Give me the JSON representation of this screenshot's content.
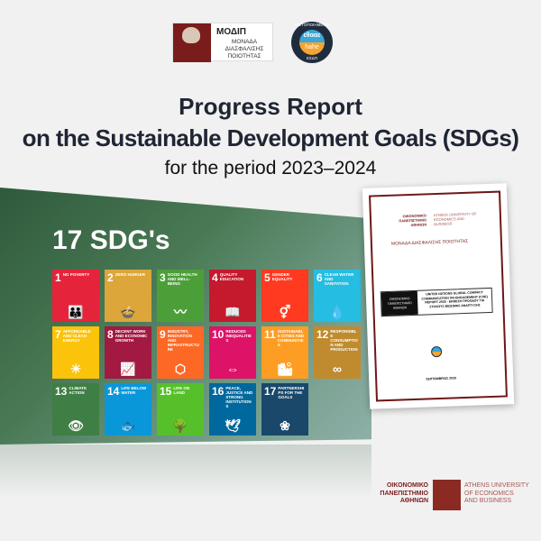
{
  "logos": {
    "modip": {
      "name": "ΜΟΔΙΠ",
      "subtitle_lines": [
        "ΜΟΝΑΔΑ",
        "ΔΙΑΣΦΑΛΙΣΗΣ",
        "ΠΟΙΟΤΗΤΑΣ"
      ]
    },
    "hahe": {
      "ring_top": "ΠΙΣΤΟΠΟΙΗΜΕΝΟ",
      "ring_bottom": "ΕΣΔΠ",
      "top": "εθααε",
      "bottom": "hahe"
    }
  },
  "title": {
    "line1": "Progress Report",
    "line2": "on the Sustainable Development Goals (SDGs)",
    "line3": "for the period 2023–2024"
  },
  "sdg_heading": "17 SDG's",
  "sdgs": [
    {
      "n": "1",
      "label": "NO POVERTY",
      "color": "#e5243b",
      "icon": "👪"
    },
    {
      "n": "2",
      "label": "ZERO HUNGER",
      "color": "#dda63a",
      "icon": "🍲"
    },
    {
      "n": "3",
      "label": "GOOD HEALTH AND WELL-BEING",
      "color": "#4c9f38",
      "icon": "〰"
    },
    {
      "n": "4",
      "label": "QUALITY EDUCATION",
      "color": "#c5192d",
      "icon": "📖"
    },
    {
      "n": "5",
      "label": "GENDER EQUALITY",
      "color": "#ff3a21",
      "icon": "⚥"
    },
    {
      "n": "6",
      "label": "CLEAN WATER AND SANITATION",
      "color": "#26bde2",
      "icon": "💧"
    },
    {
      "n": "7",
      "label": "AFFORDABLE AND CLEAN ENERGY",
      "color": "#fcc30b",
      "icon": "☀"
    },
    {
      "n": "8",
      "label": "DECENT WORK AND ECONOMIC GROWTH",
      "color": "#a21942",
      "icon": "📈"
    },
    {
      "n": "9",
      "label": "INDUSTRY, INNOVATION AND INFRASTRUCTURE",
      "color": "#fd6925",
      "icon": "⬡"
    },
    {
      "n": "10",
      "label": "REDUCED INEQUALITIES",
      "color": "#dd1367",
      "icon": "⇔"
    },
    {
      "n": "11",
      "label": "SUSTAINABLE CITIES AND COMMUNITIES",
      "color": "#fd9d24",
      "icon": "🏙"
    },
    {
      "n": "12",
      "label": "RESPONSIBLE CONSUMPTION AND PRODUCTION",
      "color": "#bf8b2e",
      "icon": "∞"
    },
    {
      "n": "13",
      "label": "CLIMATE ACTION",
      "color": "#3f7e44",
      "icon": "👁"
    },
    {
      "n": "14",
      "label": "LIFE BELOW WATER",
      "color": "#0a97d9",
      "icon": "🐟"
    },
    {
      "n": "15",
      "label": "LIFE ON LAND",
      "color": "#56c02b",
      "icon": "🌳"
    },
    {
      "n": "16",
      "label": "PEACE, JUSTICE AND STRONG INSTITUTIONS",
      "color": "#00689d",
      "icon": "🕊"
    },
    {
      "n": "17",
      "label": "PARTNERSHIPS FOR THE GOALS",
      "color": "#19486a",
      "icon": "❀"
    }
  ],
  "document": {
    "logo_gr": "ΟΙΚΟΝΟΜΙΚΟ ΠΑΝΕΠΙΣΤΗΜΙΟ ΑΘΗΝΩΝ",
    "logo_en": "ATHENS UNIVERSITY OF ECONOMICS AND BUSINESS",
    "unit": "ΜΟΝΑΔΑ ΔΙΑΣΦΑΛΙΣΗΣ ΠΟΙΟΤΗΤΑΣ",
    "box_left": "ΟΙΚΟΝΟΜΙΚΟ ΠΑΝΕΠΙΣΤΗΜΙΟ ΑΘΗΝΩΝ",
    "box_right": "UNITED NATIONS GLOBAL COMPACT COMMUNICATION ON ENGAGEMENT (COE) REPORT 2025 - ΕΚΘΕΣΗ ΠΡΟΟΔΟΥ ΓΙΑ ΣΤΟΧΟΥΣ ΒΙΩΣΙΜΗΣ ΑΝΑΠΤΥΞΗΣ",
    "date": "ΣΕΠΤΕΜΒΡΙΟΣ 2025"
  },
  "footer_logo": {
    "greek_lines": [
      "ΟΙΚΟΝΟΜΙΚΟ",
      "ΠΑΝΕΠΙΣΤΗΜΙΟ",
      "ΑΘΗΝΩΝ"
    ],
    "english_lines": [
      "ATHENS UNIVERSITY",
      "OF ECONOMICS",
      "AND BUSINESS"
    ]
  }
}
